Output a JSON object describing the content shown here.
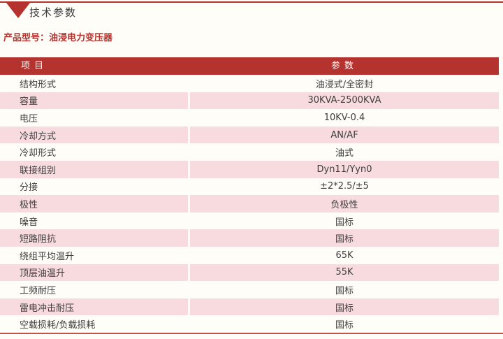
{
  "page": {
    "section_title": "技术参数",
    "product_label": "产品型号：油浸电力变压器"
  },
  "table": {
    "headers": [
      "项目",
      "参数"
    ],
    "rows": [
      {
        "item": "结构形式",
        "value": "油浸式/全密封"
      },
      {
        "item": "容量",
        "value": "30KVA-2500KVA"
      },
      {
        "item": "电压",
        "value": "10KV-0.4"
      },
      {
        "item": "冷却方式",
        "value": "AN/AF"
      },
      {
        "item": "冷却形式",
        "value": "油式"
      },
      {
        "item": "联接组别",
        "value": "Dyn11/Yyn0"
      },
      {
        "item": "分接",
        "value": "±2*2.5/±5"
      },
      {
        "item": "极性",
        "value": "负极性"
      },
      {
        "item": "噪音",
        "value": "国标"
      },
      {
        "item": "短路阻抗",
        "value": "国标"
      },
      {
        "item": "绕组平均温升",
        "value": "65K"
      },
      {
        "item": "顶层油温升",
        "value": "55K"
      },
      {
        "item": "工频耐压",
        "value": "国标"
      },
      {
        "item": "雷电冲击耐压",
        "value": "国标"
      },
      {
        "item": "空载损耗/负载损耗",
        "value": "国标"
      }
    ]
  },
  "icons": {
    "section_marker": "triangle-down-icon"
  },
  "colors": {
    "brand_red": "#b5332e",
    "row_pink": "#f8dbdf",
    "page_bg": "#fffdf8",
    "text_dark": "#3d3d3d",
    "bottom_line": "#c0544c"
  }
}
